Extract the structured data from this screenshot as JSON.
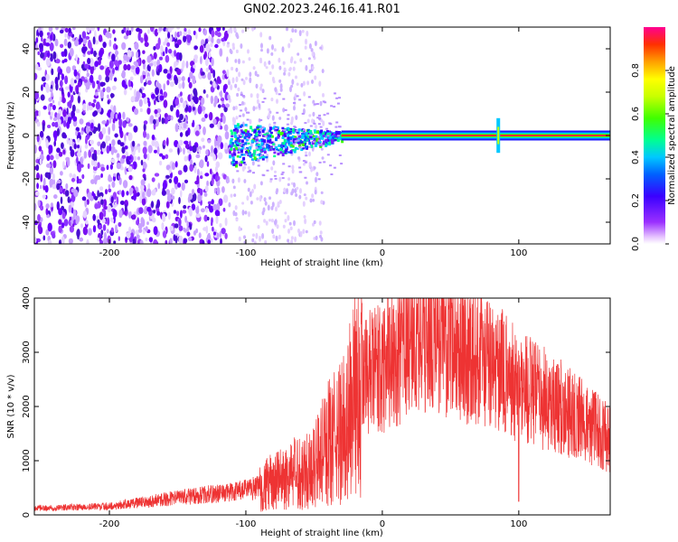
{
  "title": "GN02.2023.246.16.41.R01",
  "chart_data": [
    {
      "type": "heatmap",
      "xlabel": "Height of straight line (km)",
      "ylabel": "Frequency (Hz)",
      "xlim": [
        -255,
        167
      ],
      "ylim": [
        -50,
        50
      ],
      "xticks": [
        -200,
        -100,
        0,
        100
      ],
      "yticks": [
        -40,
        -20,
        0,
        20,
        40
      ],
      "colorbar": {
        "label": "Normalized spectral amplitude",
        "range": [
          0,
          1
        ],
        "ticks": [
          "0.0",
          "0.2",
          "0.4",
          "0.6",
          "0.8"
        ],
        "tick_values": [
          0,
          0.2,
          0.4,
          0.6,
          0.8
        ]
      },
      "features": {
        "noise_region_x": [
          -255,
          -113
        ],
        "transition_region_x": [
          -113,
          -30
        ],
        "tone_line_x": [
          -5,
          167
        ],
        "tone_frequency_hz": 0,
        "spike_x": 85
      }
    },
    {
      "type": "line",
      "xlabel": "Height of straight line (km)",
      "ylabel": "SNR (10 * v/v)",
      "xlim": [
        -255,
        167
      ],
      "ylim": [
        0,
        4000
      ],
      "xticks": [
        -200,
        -100,
        0,
        100
      ],
      "yticks": [
        0,
        1000,
        2000,
        3000,
        4000
      ],
      "grid": false,
      "color": "#ee3333",
      "envelope": {
        "x": [
          -255,
          -200,
          -180,
          -150,
          -100,
          -80,
          -50,
          -40,
          -30,
          -20,
          -15,
          -10,
          0,
          10,
          20,
          30,
          40,
          50,
          70,
          90,
          100,
          130,
          150,
          167
        ],
        "y": [
          120,
          160,
          220,
          320,
          450,
          600,
          900,
          1300,
          1500,
          2200,
          2500,
          2600,
          2700,
          2900,
          3200,
          3300,
          3350,
          3200,
          2900,
          2600,
          2400,
          2000,
          1700,
          1400
        ]
      },
      "spikes": [
        {
          "x": 100,
          "y": 4000
        },
        {
          "x": 100,
          "y": 250
        },
        {
          "x": 4,
          "y": 4000
        },
        {
          "x": -15,
          "y": 3900
        }
      ]
    }
  ]
}
